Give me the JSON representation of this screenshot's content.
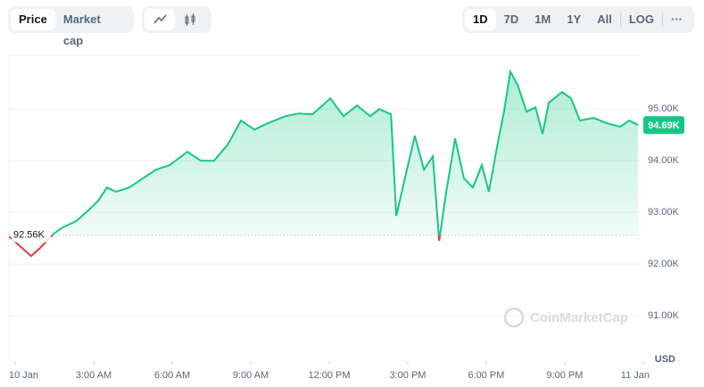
{
  "controls": {
    "tabs": [
      "Price",
      "Market cap"
    ],
    "ranges": [
      "1D",
      "7D",
      "1M",
      "1Y",
      "All",
      "LOG",
      "···"
    ]
  },
  "chart_data": {
    "type": "line",
    "x": [
      -0.24,
      0.61,
      0.95,
      1.47,
      1.81,
      2.32,
      2.83,
      3.17,
      3.51,
      3.85,
      4.36,
      4.87,
      5.39,
      5.9,
      6.58,
      7.09,
      7.6,
      8.12,
      8.63,
      9.14,
      9.65,
      10.33,
      10.84,
      11.36,
      12.04,
      12.55,
      13.06,
      13.57,
      13.91,
      14.36,
      14.56,
      14.93,
      15.27,
      15.62,
      15.96,
      16.2,
      16.47,
      16.81,
      17.15,
      17.49,
      17.83,
      18.1,
      18.44,
      18.68,
      18.92,
      19.2,
      19.54,
      19.88,
      20.15,
      20.39,
      20.9,
      21.24,
      21.58,
      22.1,
      22.61,
      23.12,
      23.46,
      23.8
    ],
    "series": [
      {
        "color": "#16c784",
        "values": [
          92534,
          92155,
          92310,
          92586,
          92707,
          92828,
          93052,
          93224,
          93483,
          93397,
          93483,
          93655,
          93828,
          93914,
          94172,
          94000,
          94000,
          94310,
          94776,
          94603,
          94724,
          94862,
          94914,
          94897,
          95207,
          94862,
          95069,
          94862,
          95000,
          94897,
          92931,
          93741,
          94483,
          93828,
          94086,
          92448,
          93397,
          94431,
          93655,
          93483,
          93914,
          93397,
          94345,
          94948,
          95724,
          95466,
          94948,
          95034,
          94517,
          95121,
          95328,
          95207,
          94776,
          94828,
          94724,
          94655,
          94776,
          94690
        ]
      }
    ],
    "down_color": "#ea3943",
    "baseline": {
      "value": 92560,
      "label": "92.56K"
    },
    "last_value_label": "94.69K",
    "xlim": [
      -0.24,
      23.9
    ],
    "xticks": [
      {
        "value": 0,
        "label": "10 Jan"
      },
      {
        "value": 3,
        "label": "3:00 AM"
      },
      {
        "value": 6,
        "label": "6:00 AM"
      },
      {
        "value": 9,
        "label": "9:00 AM"
      },
      {
        "value": 12,
        "label": "12:00 PM"
      },
      {
        "value": 15,
        "label": "3:00 PM"
      },
      {
        "value": 18,
        "label": "6:00 PM"
      },
      {
        "value": 21,
        "label": "9:00 PM"
      },
      {
        "value": 24,
        "label": "11 Jan"
      }
    ],
    "ylim": [
      90120,
      96040
    ],
    "yticks": [
      {
        "value": 91000,
        "label": "91.00K"
      },
      {
        "value": 92000,
        "label": "92.00K"
      },
      {
        "value": 93000,
        "label": "93.00K"
      },
      {
        "value": 94000,
        "label": "94.00K"
      },
      {
        "value": 95000,
        "label": "95.00K"
      }
    ],
    "grid": true,
    "unit_label": "USD",
    "watermark": "CoinMarketCap"
  }
}
